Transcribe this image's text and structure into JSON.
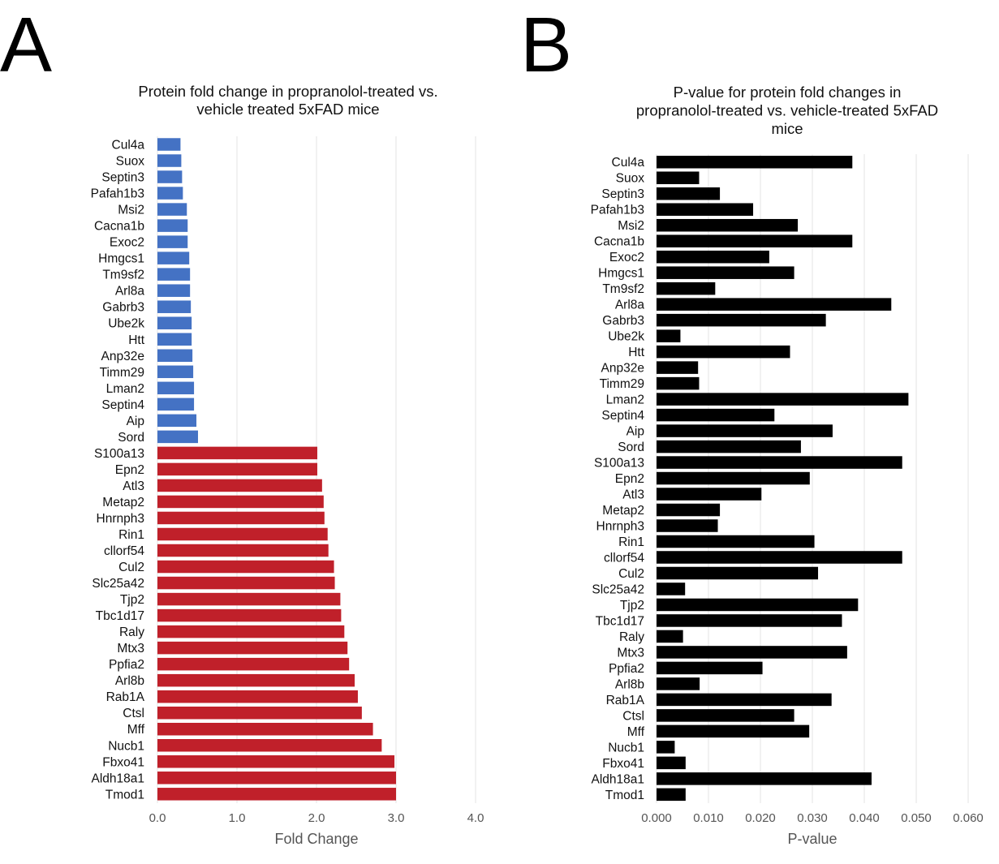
{
  "panels": [
    "A",
    "B"
  ],
  "colors": {
    "low": "#4472c4",
    "high": "#c0202a",
    "pvalue": "#000000"
  },
  "chart_data": [
    {
      "type": "bar",
      "orientation": "horizontal",
      "title": "Protein fold change in propranolol-treated vs. vehicle treated 5xFAD mice",
      "title_lines": [
        "Protein fold change in propranolol-treated vs.",
        "vehicle treated 5xFAD mice"
      ],
      "xlabel": "Fold Change",
      "ylabel": "",
      "xlim": [
        0,
        4
      ],
      "xticks": [
        "0.0",
        "1.0",
        "2.0",
        "3.0",
        "4.0"
      ],
      "grid": true,
      "categories": [
        "Cul4a",
        "Suox",
        "Septin3",
        "Pafah1b3",
        "Msi2",
        "Cacna1b",
        "Exoc2",
        "Hmgcs1",
        "Tm9sf2",
        "Arl8a",
        "Gabrb3",
        "Ube2k",
        "Htt",
        "Anp32e",
        "Timm29",
        "Lman2",
        "Septin4",
        "Aip",
        "Sord",
        "S100a13",
        "Epn2",
        "Atl3",
        "Metap2",
        "Hnrnph3",
        "Rin1",
        "cllorf54",
        "Cul2",
        "Slc25a42",
        "Tjp2",
        "Tbc1d17",
        "Raly",
        "Mtx3",
        "Ppfia2",
        "Arl8b",
        "Rab1A",
        "Ctsl",
        "Mff",
        "Nucb1",
        "Fbxo41",
        "Aldh18a1",
        "Tmod1"
      ],
      "values": [
        0.29,
        0.3,
        0.31,
        0.32,
        0.37,
        0.38,
        0.38,
        0.4,
        0.41,
        0.41,
        0.42,
        0.43,
        0.43,
        0.44,
        0.45,
        0.46,
        0.46,
        0.49,
        0.51,
        2.01,
        2.01,
        2.07,
        2.09,
        2.1,
        2.14,
        2.15,
        2.22,
        2.23,
        2.3,
        2.31,
        2.35,
        2.39,
        2.41,
        2.48,
        2.52,
        2.57,
        2.71,
        2.82,
        2.98,
        3.0,
        3.0
      ],
      "colors": [
        "#4472c4",
        "#4472c4",
        "#4472c4",
        "#4472c4",
        "#4472c4",
        "#4472c4",
        "#4472c4",
        "#4472c4",
        "#4472c4",
        "#4472c4",
        "#4472c4",
        "#4472c4",
        "#4472c4",
        "#4472c4",
        "#4472c4",
        "#4472c4",
        "#4472c4",
        "#4472c4",
        "#4472c4",
        "#c0202a",
        "#c0202a",
        "#c0202a",
        "#c0202a",
        "#c0202a",
        "#c0202a",
        "#c0202a",
        "#c0202a",
        "#c0202a",
        "#c0202a",
        "#c0202a",
        "#c0202a",
        "#c0202a",
        "#c0202a",
        "#c0202a",
        "#c0202a",
        "#c0202a",
        "#c0202a",
        "#c0202a",
        "#c0202a",
        "#c0202a",
        "#c0202a"
      ]
    },
    {
      "type": "bar",
      "orientation": "horizontal",
      "title": "P-value for protein fold changes in propranolol-treated vs. vehicle-treated 5xFAD mice",
      "title_lines": [
        "P-value for protein fold changes in",
        "propranolol-treated vs. vehicle-treated 5xFAD",
        "mice"
      ],
      "xlabel": "P-value",
      "ylabel": "",
      "xlim": [
        0,
        0.06
      ],
      "xticks": [
        "0.000",
        "0.010",
        "0.020",
        "0.030",
        "0.040",
        "0.050",
        "0.060"
      ],
      "grid": true,
      "categories": [
        "Cul4a",
        "Suox",
        "Septin3",
        "Pafah1b3",
        "Msi2",
        "Cacna1b",
        "Exoc2",
        "Hmgcs1",
        "Tm9sf2",
        "Arl8a",
        "Gabrb3",
        "Ube2k",
        "Htt",
        "Anp32e",
        "Timm29",
        "Lman2",
        "Septin4",
        "Aip",
        "Sord",
        "S100a13",
        "Epn2",
        "Atl3",
        "Metap2",
        "Hnrnph3",
        "Rin1",
        "cllorf54",
        "Cul2",
        "Slc25a42",
        "Tjp2",
        "Tbc1d17",
        "Raly",
        "Mtx3",
        "Ppfia2",
        "Arl8b",
        "Rab1A",
        "Ctsl",
        "Mff",
        "Nucb1",
        "Fbxo41",
        "Aldh18a1",
        "Tmod1"
      ],
      "values": [
        0.0377,
        0.0082,
        0.0122,
        0.0186,
        0.0272,
        0.0377,
        0.0217,
        0.0265,
        0.0113,
        0.0452,
        0.0326,
        0.0046,
        0.0257,
        0.008,
        0.0082,
        0.0485,
        0.0227,
        0.0339,
        0.0278,
        0.0473,
        0.0295,
        0.0202,
        0.0122,
        0.0118,
        0.0304,
        0.0473,
        0.0311,
        0.0055,
        0.0388,
        0.0357,
        0.0051,
        0.0367,
        0.0204,
        0.0083,
        0.0337,
        0.0265,
        0.0294,
        0.0035,
        0.0056,
        0.0414,
        0.0056
      ],
      "color": "#000000"
    }
  ]
}
